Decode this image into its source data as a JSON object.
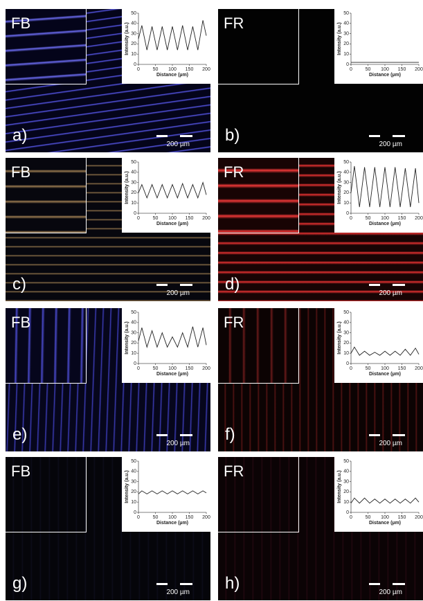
{
  "panels": [
    {
      "channel": "FB",
      "label": "a)",
      "scale_bar": "200 µm",
      "chart": {
        "type": "line",
        "ylabel": "Intensity (a.u.)",
        "xlabel": "Distance (µm)",
        "x": [
          0,
          10,
          25,
          40,
          55,
          70,
          85,
          100,
          115,
          130,
          145,
          160,
          175,
          190,
          200
        ],
        "values": [
          25,
          38,
          14,
          37,
          14,
          37,
          14,
          37,
          14,
          38,
          14,
          37,
          14,
          43,
          28
        ],
        "xlim": [
          0,
          200
        ],
        "ylim": [
          0,
          50
        ],
        "xticks": [
          0,
          50,
          100,
          150,
          200
        ],
        "yticks": [
          0,
          10,
          20,
          30,
          40,
          50
        ],
        "color": "#222222"
      }
    },
    {
      "channel": "FR",
      "label": "b)",
      "scale_bar": "200 µm",
      "chart": {
        "type": "line",
        "ylabel": "Intensity (a.u.)",
        "xlabel": "Distance (µm)",
        "x": [
          0,
          10,
          25,
          40,
          55,
          70,
          85,
          100,
          115,
          130,
          145,
          160,
          175,
          190,
          200
        ],
        "values": [
          2,
          2,
          2,
          2,
          2,
          2,
          2,
          2,
          2,
          2,
          2,
          2,
          2,
          2,
          2
        ],
        "xlim": [
          0,
          200
        ],
        "ylim": [
          0,
          50
        ],
        "xticks": [
          0,
          50,
          100,
          150,
          200
        ],
        "yticks": [
          0,
          10,
          20,
          30,
          40,
          50
        ],
        "color": "#222222"
      }
    },
    {
      "channel": "FB",
      "label": "c)",
      "scale_bar": "200 µm",
      "chart": {
        "type": "line",
        "ylabel": "Intensity (a.u.)",
        "xlabel": "Distance (µm)",
        "x": [
          0,
          10,
          25,
          40,
          55,
          70,
          85,
          100,
          115,
          130,
          145,
          160,
          175,
          190,
          200
        ],
        "values": [
          20,
          28,
          15,
          28,
          15,
          28,
          15,
          28,
          15,
          29,
          15,
          28,
          15,
          30,
          18
        ],
        "xlim": [
          0,
          200
        ],
        "ylim": [
          0,
          50
        ],
        "xticks": [
          0,
          50,
          100,
          150,
          200
        ],
        "yticks": [
          0,
          10,
          20,
          30,
          40,
          50
        ],
        "color": "#222222"
      }
    },
    {
      "channel": "FR",
      "label": "d)",
      "scale_bar": "200 µm",
      "chart": {
        "type": "line",
        "ylabel": "Intensity (a.u.)",
        "xlabel": "Distance (µm)",
        "x": [
          0,
          10,
          25,
          40,
          55,
          70,
          85,
          100,
          115,
          130,
          145,
          160,
          175,
          190,
          200
        ],
        "values": [
          20,
          46,
          6,
          45,
          6,
          45,
          6,
          45,
          6,
          45,
          6,
          44,
          6,
          44,
          10
        ],
        "xlim": [
          0,
          200
        ],
        "ylim": [
          0,
          50
        ],
        "xticks": [
          0,
          50,
          100,
          150,
          200
        ],
        "yticks": [
          0,
          10,
          20,
          30,
          40,
          50
        ],
        "color": "#222222"
      }
    },
    {
      "channel": "FB",
      "label": "e)",
      "scale_bar": "200 µm",
      "chart": {
        "type": "line",
        "ylabel": "Intensity (a.u.)",
        "xlabel": "Distance (µm)",
        "x": [
          0,
          10,
          25,
          40,
          55,
          70,
          85,
          100,
          115,
          130,
          145,
          160,
          175,
          190,
          200
        ],
        "values": [
          22,
          35,
          16,
          32,
          16,
          30,
          16,
          26,
          16,
          30,
          16,
          36,
          16,
          35,
          18
        ],
        "xlim": [
          0,
          200
        ],
        "ylim": [
          0,
          50
        ],
        "xticks": [
          0,
          50,
          100,
          150,
          200
        ],
        "yticks": [
          0,
          10,
          20,
          30,
          40,
          50
        ],
        "color": "#222222"
      }
    },
    {
      "channel": "FR",
      "label": "f)",
      "scale_bar": "200 µm",
      "chart": {
        "type": "line",
        "ylabel": "Intensity (a.u.)",
        "xlabel": "Distance (µm)",
        "x": [
          0,
          10,
          25,
          40,
          55,
          70,
          85,
          100,
          115,
          130,
          145,
          160,
          175,
          190,
          200
        ],
        "values": [
          10,
          16,
          8,
          12,
          8,
          11,
          8,
          12,
          8,
          12,
          8,
          14,
          8,
          15,
          9
        ],
        "xlim": [
          0,
          200
        ],
        "ylim": [
          0,
          50
        ],
        "xticks": [
          0,
          50,
          100,
          150,
          200
        ],
        "yticks": [
          0,
          10,
          20,
          30,
          40,
          50
        ],
        "color": "#222222"
      }
    },
    {
      "channel": "FB",
      "label": "g)",
      "scale_bar": "200 µm",
      "chart": {
        "type": "line",
        "ylabel": "Intensity (a.u.)",
        "xlabel": "Distance (µm)",
        "x": [
          0,
          10,
          25,
          40,
          55,
          70,
          85,
          100,
          115,
          130,
          145,
          160,
          175,
          190,
          200
        ],
        "values": [
          18,
          21,
          18,
          21,
          18,
          21,
          18,
          21,
          18,
          21,
          18,
          21,
          18,
          21,
          19
        ],
        "xlim": [
          0,
          200
        ],
        "ylim": [
          0,
          50
        ],
        "xticks": [
          0,
          50,
          100,
          150,
          200
        ],
        "yticks": [
          0,
          10,
          20,
          30,
          40,
          50
        ],
        "color": "#222222"
      }
    },
    {
      "channel": "FR",
      "label": "h)",
      "scale_bar": "200 µm",
      "chart": {
        "type": "line",
        "ylabel": "Intensity (a.u.)",
        "xlabel": "Distance (µm)",
        "x": [
          0,
          10,
          25,
          40,
          55,
          70,
          85,
          100,
          115,
          130,
          145,
          160,
          175,
          190,
          200
        ],
        "values": [
          9,
          14,
          9,
          14,
          9,
          13,
          9,
          13,
          9,
          13,
          9,
          13,
          9,
          14,
          10
        ],
        "xlim": [
          0,
          200
        ],
        "ylim": [
          0,
          50
        ],
        "xticks": [
          0,
          50,
          100,
          150,
          200
        ],
        "yticks": [
          0,
          10,
          20,
          30,
          40,
          50
        ],
        "color": "#222222"
      }
    }
  ]
}
